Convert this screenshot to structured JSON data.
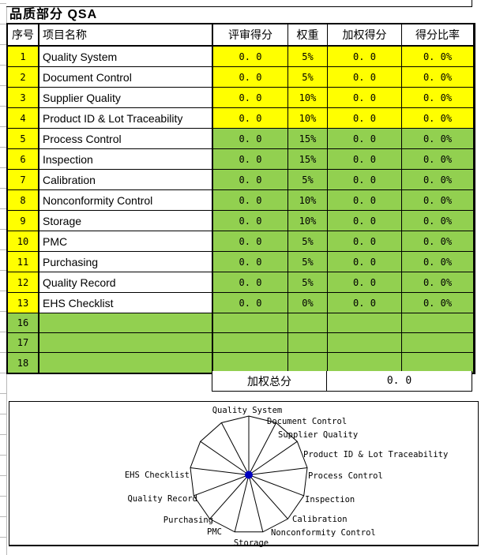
{
  "page_title": "品质部分 QSA",
  "table": {
    "headers": [
      "序号",
      "项目名称",
      "评审得分",
      "权重",
      "加权得分",
      "得分比率"
    ],
    "rows": [
      {
        "no": "1",
        "name": "Quality System",
        "score": "0. 0",
        "weight": "5%",
        "weighted": "0. 0",
        "ratio": "0. 0%",
        "band": "yellow"
      },
      {
        "no": "2",
        "name": "Document Control",
        "score": "0. 0",
        "weight": "5%",
        "weighted": "0. 0",
        "ratio": "0. 0%",
        "band": "yellow"
      },
      {
        "no": "3",
        "name": "Supplier Quality",
        "score": "0. 0",
        "weight": "10%",
        "weighted": "0. 0",
        "ratio": "0. 0%",
        "band": "yellow"
      },
      {
        "no": "4",
        "name": "Product ID & Lot Traceability",
        "score": "0. 0",
        "weight": "10%",
        "weighted": "0. 0",
        "ratio": "0. 0%",
        "band": "yellow"
      },
      {
        "no": "5",
        "name": "Process Control",
        "score": "0. 0",
        "weight": "15%",
        "weighted": "0. 0",
        "ratio": "0. 0%",
        "band": "green"
      },
      {
        "no": "6",
        "name": "Inspection",
        "score": "0. 0",
        "weight": "15%",
        "weighted": "0. 0",
        "ratio": "0. 0%",
        "band": "green"
      },
      {
        "no": "7",
        "name": "Calibration",
        "score": "0. 0",
        "weight": "5%",
        "weighted": "0. 0",
        "ratio": "0. 0%",
        "band": "green"
      },
      {
        "no": "8",
        "name": "Nonconformity Control",
        "score": "0. 0",
        "weight": "10%",
        "weighted": "0. 0",
        "ratio": "0. 0%",
        "band": "green"
      },
      {
        "no": "9",
        "name": "Storage",
        "score": "0. 0",
        "weight": "10%",
        "weighted": "0. 0",
        "ratio": "0. 0%",
        "band": "green"
      },
      {
        "no": "10",
        "name": "PMC",
        "score": "0. 0",
        "weight": "5%",
        "weighted": "0. 0",
        "ratio": "0. 0%",
        "band": "green"
      },
      {
        "no": "11",
        "name": "Purchasing",
        "score": "0. 0",
        "weight": "5%",
        "weighted": "0. 0",
        "ratio": "0. 0%",
        "band": "green"
      },
      {
        "no": "12",
        "name": "Quality Record",
        "score": "0. 0",
        "weight": "5%",
        "weighted": "0. 0",
        "ratio": "0. 0%",
        "band": "green"
      },
      {
        "no": "13",
        "name": "EHS Checklist",
        "score": "0. 0",
        "weight": "0%",
        "weighted": "0. 0",
        "ratio": "0. 0%",
        "band": "green"
      },
      {
        "no": "16",
        "name": "",
        "score": "",
        "weight": "",
        "weighted": "",
        "ratio": "",
        "band": "green-full"
      },
      {
        "no": "17",
        "name": "",
        "score": "",
        "weight": "",
        "weighted": "",
        "ratio": "",
        "band": "green-full"
      },
      {
        "no": "18",
        "name": "",
        "score": "",
        "weight": "",
        "weighted": "",
        "ratio": "",
        "band": "green-full"
      }
    ],
    "total_label": "加权总分",
    "total_value": "0. 0"
  },
  "chart_data": {
    "type": "radar",
    "categories": [
      "Quality System",
      "Document Control",
      "Supplier Quality",
      "Product ID & Lot Traceability",
      "Process Control",
      "Inspection",
      "Calibration",
      "Nonconformity Control",
      "Storage",
      "PMC",
      "Purchasing",
      "Quality Record",
      "EHS Checklist"
    ],
    "series": [
      {
        "name": "",
        "values": [
          0,
          0,
          0,
          0,
          0,
          0,
          0,
          0,
          0,
          0,
          0,
          0,
          0
        ]
      }
    ],
    "rmax": 1,
    "grid": "outer-ring-and-spokes",
    "legend": "none",
    "marker_color": "#0000C0",
    "line_color": "#000000"
  },
  "colors": {
    "yellow": "#FFFF00",
    "green": "#92D050",
    "border": "#000000"
  }
}
